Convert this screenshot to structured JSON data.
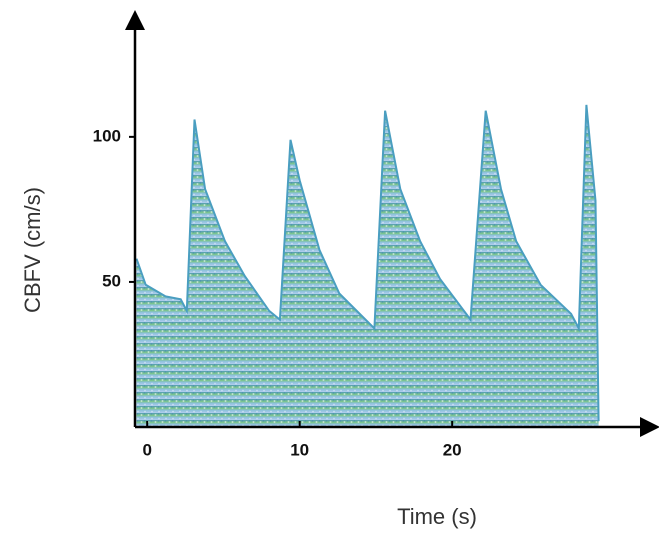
{
  "chart_data": {
    "type": "area",
    "xlabel": "Time (s)",
    "ylabel": "CBFV (cm/s)",
    "x": [
      -0.7,
      -0.1,
      1.2,
      2.2,
      2.6,
      3.1,
      3.8,
      5.1,
      6.4,
      8.0,
      8.7,
      9.4,
      10.0,
      11.3,
      12.6,
      14.9,
      15.6,
      16.6,
      17.9,
      19.2,
      21.2,
      22.2,
      23.2,
      24.2,
      25.8,
      27.8,
      28.3,
      28.8,
      29.4,
      29.6
    ],
    "values": [
      58,
      49,
      45,
      44,
      40,
      106,
      82,
      64,
      52,
      40,
      37,
      99,
      85,
      61,
      46,
      34,
      109,
      82,
      64,
      51,
      37,
      109,
      82,
      64,
      49,
      39,
      34,
      111,
      78,
      2
    ],
    "color": "#4a9ec0",
    "xlim": [
      -0.8,
      33.3
    ],
    "ylim": [
      0,
      142
    ],
    "xticks": [
      0,
      10,
      20
    ],
    "yticks": [
      50,
      100
    ]
  }
}
